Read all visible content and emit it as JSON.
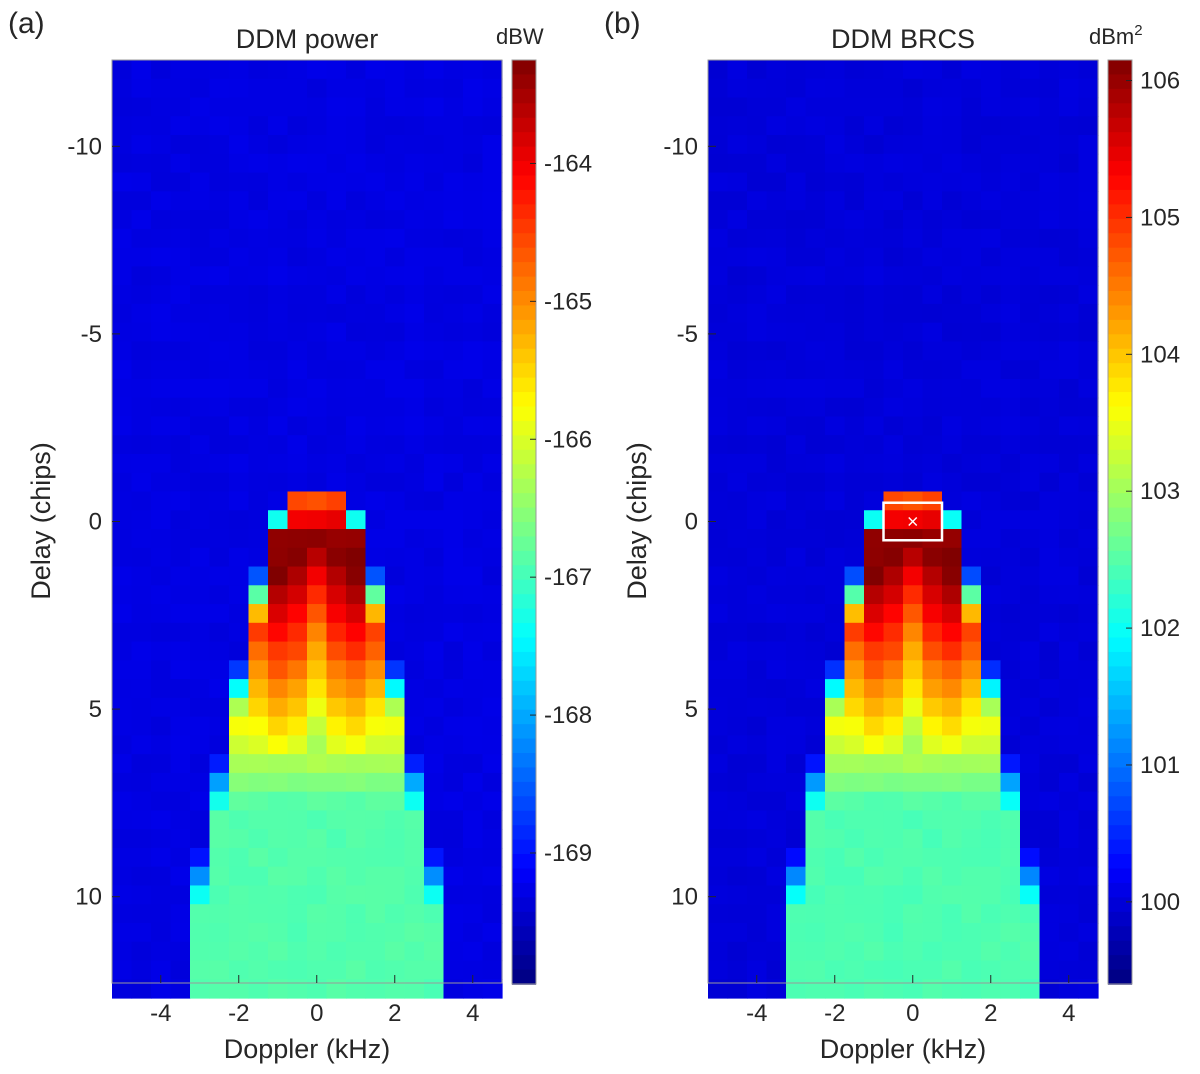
{
  "chart_data": [
    {
      "type": "heatmap",
      "panel_label": "(a)",
      "title": "DDM power",
      "xlabel": "Doppler (kHz)",
      "ylabel": "Delay (chips)",
      "x_ticks": [
        "-4",
        "-2",
        "0",
        "2",
        "4"
      ],
      "y_ticks": [
        "-10",
        "-5",
        "0",
        "5",
        "10"
      ],
      "xlim": [
        -5.25,
        4.75
      ],
      "ylim": [
        -12.3,
        12.3
      ],
      "y_reversed": true,
      "grid": false,
      "colormap": "jet",
      "colorbar": {
        "unit": "dBW",
        "unit_sup": "",
        "ticks": [
          "-164",
          "-165",
          "-166",
          "-167",
          "-168",
          "-169"
        ],
        "range": [
          -169.95,
          -163.25
        ]
      },
      "doppler_bin_khz": 0.5,
      "delay_bin_chips": 0.5,
      "peak": {
        "doppler_khz": 0,
        "delay_chips": 0.5,
        "value": -163.3
      },
      "noise_floor": -169.3,
      "highlight_box": false
    },
    {
      "type": "heatmap",
      "panel_label": "(b)",
      "title": "DDM BRCS",
      "xlabel": "Doppler (kHz)",
      "ylabel": "Delay (chips)",
      "x_ticks": [
        "-4",
        "-2",
        "0",
        "2",
        "4"
      ],
      "y_ticks": [
        "-10",
        "-5",
        "0",
        "5",
        "10"
      ],
      "xlim": [
        -5.25,
        4.75
      ],
      "ylim": [
        -12.3,
        12.3
      ],
      "y_reversed": true,
      "grid": false,
      "colormap": "jet",
      "colorbar": {
        "unit": "dBm",
        "unit_sup": "2",
        "ticks": [
          "106",
          "105",
          "104",
          "103",
          "102",
          "101",
          "100"
        ],
        "range": [
          99.4,
          106.15
        ]
      },
      "doppler_bin_khz": 0.5,
      "delay_bin_chips": 0.5,
      "peak": {
        "doppler_khz": 0,
        "delay_chips": 0.25,
        "value": 106.1
      },
      "noise_floor": 100.0,
      "highlight_box": true,
      "highlight_box_extent": {
        "doppler_khz": [
          -0.75,
          0.75
        ],
        "delay_chips": [
          -0.5,
          0.5
        ]
      },
      "specular_marker": {
        "doppler_khz": 0,
        "delay_chips": 0
      }
    }
  ]
}
